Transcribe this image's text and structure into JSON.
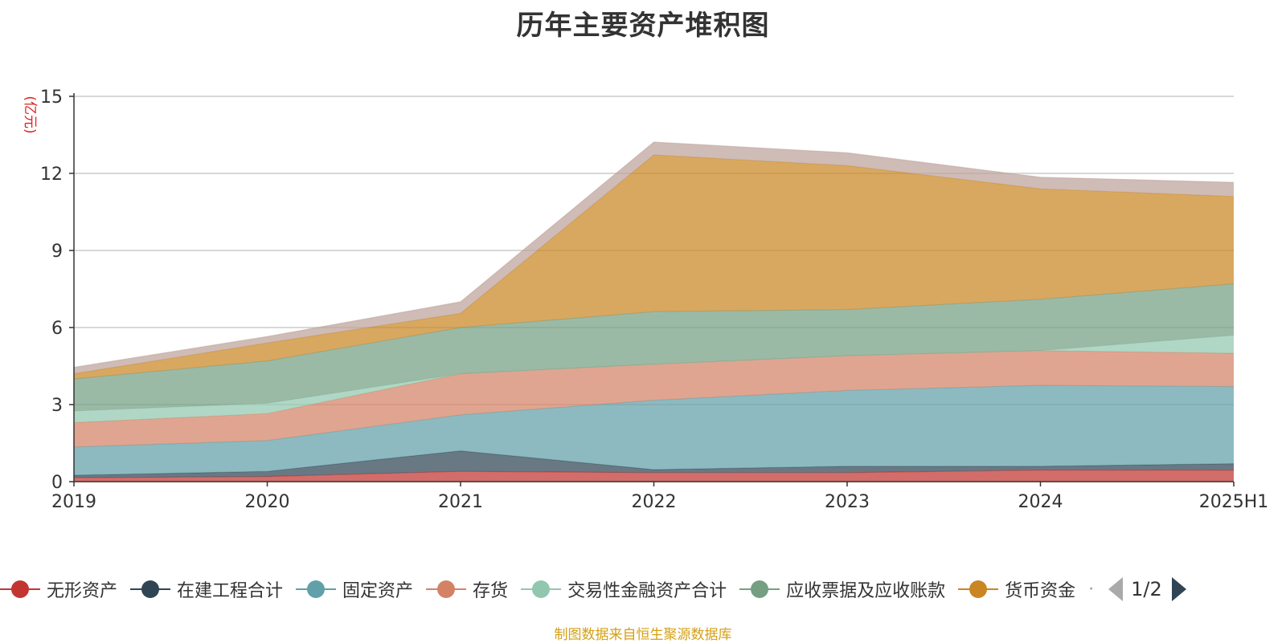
{
  "chart_data": {
    "type": "area",
    "stacked": true,
    "title": "历年主要资产堆积图",
    "ylabel": "(亿元)",
    "xlabel": "",
    "categories": [
      "2019",
      "2020",
      "2021",
      "2022",
      "2023",
      "2024",
      "2025H1"
    ],
    "ylim": [
      0,
      15
    ],
    "yticks": [
      0,
      3,
      6,
      9,
      12,
      15
    ],
    "grid": true,
    "legend_position": "bottom",
    "series": [
      {
        "name": "无形资产",
        "color": "#c23531",
        "values": [
          0.15,
          0.2,
          0.4,
          0.35,
          0.35,
          0.45,
          0.45
        ]
      },
      {
        "name": "在建工程合计",
        "color": "#2f4554",
        "values": [
          0.1,
          0.2,
          0.8,
          0.12,
          0.25,
          0.15,
          0.25
        ]
      },
      {
        "name": "固定资产",
        "color": "#61a0a8",
        "values": [
          1.1,
          1.2,
          1.4,
          2.7,
          2.95,
          3.15,
          3.0
        ]
      },
      {
        "name": "存货",
        "color": "#d48265",
        "values": [
          0.95,
          1.05,
          1.6,
          1.4,
          1.35,
          1.35,
          1.3
        ]
      },
      {
        "name": "交易性金融资产合计",
        "color": "#91c7ae",
        "values": [
          0.45,
          0.4,
          0.0,
          0.0,
          0.0,
          0.0,
          0.7
        ]
      },
      {
        "name": "应收票据及应收账款",
        "color": "#749f83",
        "values": [
          1.25,
          1.65,
          1.8,
          2.05,
          1.8,
          2.0,
          2.0
        ]
      },
      {
        "name": "货币资金",
        "color": "#ca8622",
        "values": [
          0.2,
          0.7,
          0.55,
          6.1,
          5.6,
          4.3,
          3.4
        ]
      },
      {
        "name": "",
        "color": "#bda29a",
        "values": [
          0.25,
          0.25,
          0.45,
          0.5,
          0.5,
          0.45,
          0.55
        ]
      }
    ]
  },
  "legend": {
    "more": "·",
    "page": "1/2"
  },
  "source_note": "制图数据来自恒生聚源数据库"
}
